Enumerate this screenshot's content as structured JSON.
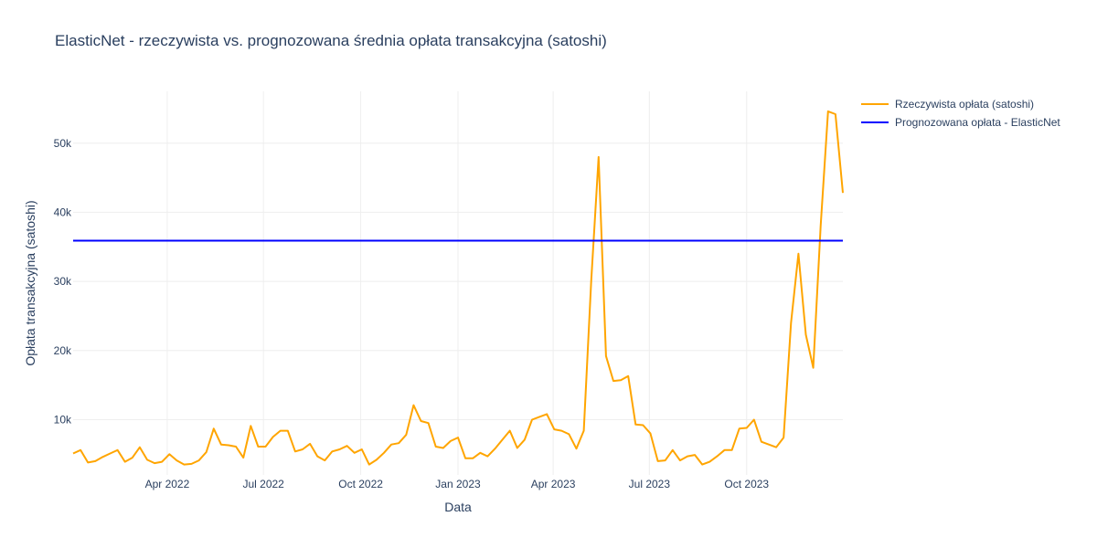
{
  "chart_data": {
    "type": "line",
    "title": "ElasticNet - rzeczywista vs. prognozowana średnia opłata transakcyjna (satoshi)",
    "xlabel": "Data",
    "ylabel": "Opłata transakcyjna (satoshi)",
    "xlim": [
      "2022-01-02",
      "2023-12-31"
    ],
    "ylim": [
      2000,
      57500
    ],
    "grid": true,
    "legend_position": "top-right",
    "x_ticks": [
      {
        "date": "2022-04-01",
        "label": "Apr 2022"
      },
      {
        "date": "2022-07-01",
        "label": "Jul 2022"
      },
      {
        "date": "2022-10-01",
        "label": "Oct 2022"
      },
      {
        "date": "2023-01-01",
        "label": "Jan 2023"
      },
      {
        "date": "2023-04-01",
        "label": "Apr 2023"
      },
      {
        "date": "2023-07-01",
        "label": "Jul 2023"
      },
      {
        "date": "2023-10-01",
        "label": "Oct 2023"
      }
    ],
    "y_ticks": [
      {
        "value": 10000,
        "label": "10k"
      },
      {
        "value": 20000,
        "label": "20k"
      },
      {
        "value": 30000,
        "label": "30k"
      },
      {
        "value": 40000,
        "label": "40k"
      },
      {
        "value": 50000,
        "label": "50k"
      }
    ],
    "series": [
      {
        "name": "Rzeczywista opłata (satoshi)",
        "color": "#FFA500",
        "x": [
          "2022-01-02",
          "2022-01-09",
          "2022-01-16",
          "2022-01-23",
          "2022-01-30",
          "2022-02-06",
          "2022-02-13",
          "2022-02-20",
          "2022-02-27",
          "2022-03-06",
          "2022-03-13",
          "2022-03-20",
          "2022-03-27",
          "2022-04-03",
          "2022-04-10",
          "2022-04-17",
          "2022-04-24",
          "2022-05-01",
          "2022-05-08",
          "2022-05-15",
          "2022-05-22",
          "2022-05-29",
          "2022-06-05",
          "2022-06-12",
          "2022-06-19",
          "2022-06-26",
          "2022-07-03",
          "2022-07-10",
          "2022-07-17",
          "2022-07-24",
          "2022-07-31",
          "2022-08-07",
          "2022-08-14",
          "2022-08-21",
          "2022-08-28",
          "2022-09-04",
          "2022-09-11",
          "2022-09-18",
          "2022-09-25",
          "2022-10-02",
          "2022-10-09",
          "2022-10-16",
          "2022-10-23",
          "2022-10-30",
          "2022-11-06",
          "2022-11-13",
          "2022-11-20",
          "2022-11-27",
          "2022-12-04",
          "2022-12-11",
          "2022-12-18",
          "2022-12-25",
          "2023-01-01",
          "2023-01-08",
          "2023-01-15",
          "2023-01-22",
          "2023-01-29",
          "2023-02-05",
          "2023-02-12",
          "2023-02-19",
          "2023-02-26",
          "2023-03-05",
          "2023-03-12",
          "2023-03-19",
          "2023-03-26",
          "2023-04-02",
          "2023-04-09",
          "2023-04-16",
          "2023-04-23",
          "2023-04-30",
          "2023-05-07",
          "2023-05-14",
          "2023-05-21",
          "2023-05-28",
          "2023-06-04",
          "2023-06-11",
          "2023-06-18",
          "2023-06-25",
          "2023-07-02",
          "2023-07-09",
          "2023-07-16",
          "2023-07-23",
          "2023-07-30",
          "2023-08-06",
          "2023-08-13",
          "2023-08-20",
          "2023-08-27",
          "2023-09-03",
          "2023-09-10",
          "2023-09-17",
          "2023-09-24",
          "2023-10-01",
          "2023-10-08",
          "2023-10-15",
          "2023-10-22",
          "2023-10-29",
          "2023-11-05",
          "2023-11-12",
          "2023-11-19",
          "2023-11-26",
          "2023-12-03",
          "2023-12-10",
          "2023-12-17",
          "2023-12-24",
          "2023-12-31"
        ],
        "values": [
          5100,
          5600,
          3800,
          4000,
          4600,
          5100,
          5600,
          3900,
          4500,
          6000,
          4200,
          3700,
          3900,
          5000,
          4100,
          3500,
          3600,
          4100,
          5300,
          8700,
          6400,
          6300,
          6100,
          4500,
          9100,
          6100,
          6100,
          7500,
          8400,
          8400,
          5400,
          5700,
          6500,
          4700,
          4100,
          5400,
          5700,
          6200,
          5200,
          5700,
          3500,
          4200,
          5200,
          6400,
          6600,
          7800,
          12100,
          9800,
          9500,
          6100,
          5900,
          6900,
          7400,
          4400,
          4400,
          5200,
          4700,
          5800,
          7100,
          8400,
          5900,
          7100,
          10000,
          10400,
          10800,
          8600,
          8400,
          7900,
          5800,
          8400,
          30000,
          48000,
          19200,
          15600,
          15700,
          16300,
          9300,
          9200,
          8000,
          4000,
          4100,
          5600,
          4100,
          4700,
          4900,
          3500,
          3900,
          4700,
          5600,
          5600,
          8700,
          8800,
          10000,
          6800,
          6400,
          6000,
          7400,
          24000,
          34000,
          22300,
          17500,
          38000,
          54600,
          54200,
          42800
        ]
      },
      {
        "name": "Prognozowana opłata - ElasticNet",
        "color": "#0000FF",
        "x": [
          "2022-01-02",
          "2023-12-31"
        ],
        "values": [
          35900,
          35900
        ]
      }
    ]
  }
}
